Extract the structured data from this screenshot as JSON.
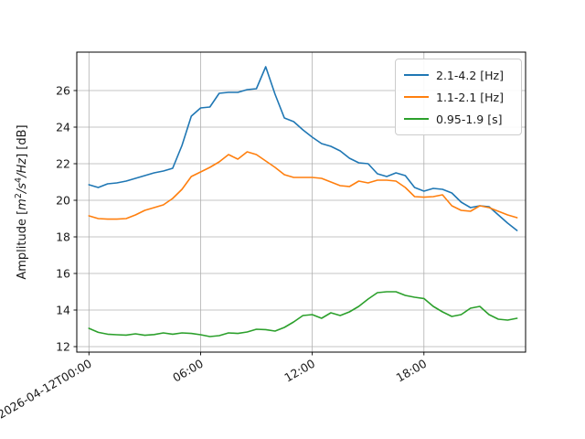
{
  "chart_data": {
    "type": "line",
    "title": "",
    "xlabel": "",
    "ylabel": "Amplitude [m2/s4/Hz] [dB]",
    "ylabel_parts": [
      {
        "text": "Amplitude [",
        "italic": false,
        "sup": false
      },
      {
        "text": "m",
        "italic": true,
        "sup": false
      },
      {
        "text": "2",
        "italic": false,
        "sup": true
      },
      {
        "text": "/s",
        "italic": true,
        "sup": false
      },
      {
        "text": "4",
        "italic": false,
        "sup": true
      },
      {
        "text": "/Hz",
        "italic": true,
        "sup": false
      },
      {
        "text": "] [dB]",
        "italic": false,
        "sup": false
      }
    ],
    "x_unit": "hours since 2026-04-12T00:00",
    "x_hours": [
      0,
      0.5,
      1,
      1.5,
      2,
      2.5,
      3,
      3.5,
      4,
      4.5,
      5,
      5.5,
      6,
      6.5,
      7,
      7.5,
      8,
      8.5,
      9,
      9.5,
      10,
      10.5,
      11,
      11.5,
      12,
      12.5,
      13,
      13.5,
      14,
      14.5,
      15,
      15.5,
      16,
      16.5,
      17,
      17.5,
      18,
      18.5,
      19,
      19.5,
      20,
      20.5,
      21,
      21.5,
      22,
      22.5,
      23
    ],
    "series": [
      {
        "name": "2.1-4.2 [Hz]",
        "color": "#1f77b4",
        "values": [
          20.85,
          20.7,
          20.9,
          20.95,
          21.05,
          21.2,
          21.35,
          21.5,
          21.6,
          21.75,
          23.0,
          24.6,
          25.05,
          25.1,
          25.85,
          25.9,
          25.9,
          26.05,
          26.1,
          27.3,
          25.8,
          24.5,
          24.3,
          23.85,
          23.45,
          23.1,
          22.95,
          22.7,
          22.3,
          22.05,
          22.0,
          21.45,
          21.3,
          21.5,
          21.35,
          20.7,
          20.5,
          20.65,
          20.6,
          20.4,
          19.9,
          19.6,
          19.7,
          19.65,
          19.2,
          18.75,
          18.35
        ]
      },
      {
        "name": "1.1-2.1 [Hz]",
        "color": "#ff7f0e",
        "values": [
          19.15,
          19.0,
          18.97,
          18.97,
          19.0,
          19.2,
          19.45,
          19.6,
          19.75,
          20.1,
          20.6,
          21.3,
          21.55,
          21.8,
          22.1,
          22.5,
          22.25,
          22.65,
          22.5,
          22.15,
          21.8,
          21.4,
          21.25,
          21.25,
          21.25,
          21.2,
          21.0,
          20.8,
          20.75,
          21.05,
          20.95,
          21.1,
          21.1,
          21.05,
          20.7,
          20.2,
          20.17,
          20.2,
          20.3,
          19.7,
          19.45,
          19.4,
          19.7,
          19.6,
          19.4,
          19.2,
          19.05
        ]
      },
      {
        "name": "0.95-1.9 [s]",
        "color": "#2ca02c",
        "values": [
          13.0,
          12.78,
          12.68,
          12.65,
          12.63,
          12.7,
          12.62,
          12.66,
          12.75,
          12.68,
          12.75,
          12.72,
          12.65,
          12.55,
          12.6,
          12.75,
          12.72,
          12.8,
          12.95,
          12.93,
          12.85,
          13.05,
          13.35,
          13.7,
          13.75,
          13.55,
          13.85,
          13.7,
          13.9,
          14.2,
          14.6,
          14.95,
          15.0,
          15.0,
          14.8,
          14.7,
          14.63,
          14.2,
          13.9,
          13.65,
          13.75,
          14.1,
          14.2,
          13.75,
          13.5,
          13.45,
          13.55
        ]
      }
    ],
    "xticks": [
      {
        "hour": 0,
        "label": "2026-04-12T00:00"
      },
      {
        "hour": 6,
        "label": "06:00"
      },
      {
        "hour": 12,
        "label": "12:00"
      },
      {
        "hour": 18,
        "label": "18:00"
      }
    ],
    "yticks": [
      12,
      14,
      16,
      18,
      20,
      22,
      24,
      26
    ],
    "ylim": [
      11.7,
      28.1
    ],
    "xlim_hours": [
      -0.65,
      23.47
    ],
    "grid": true,
    "grid_color": "#b0b0b0",
    "frame_color": "#000000",
    "legend_position": "upper right"
  }
}
